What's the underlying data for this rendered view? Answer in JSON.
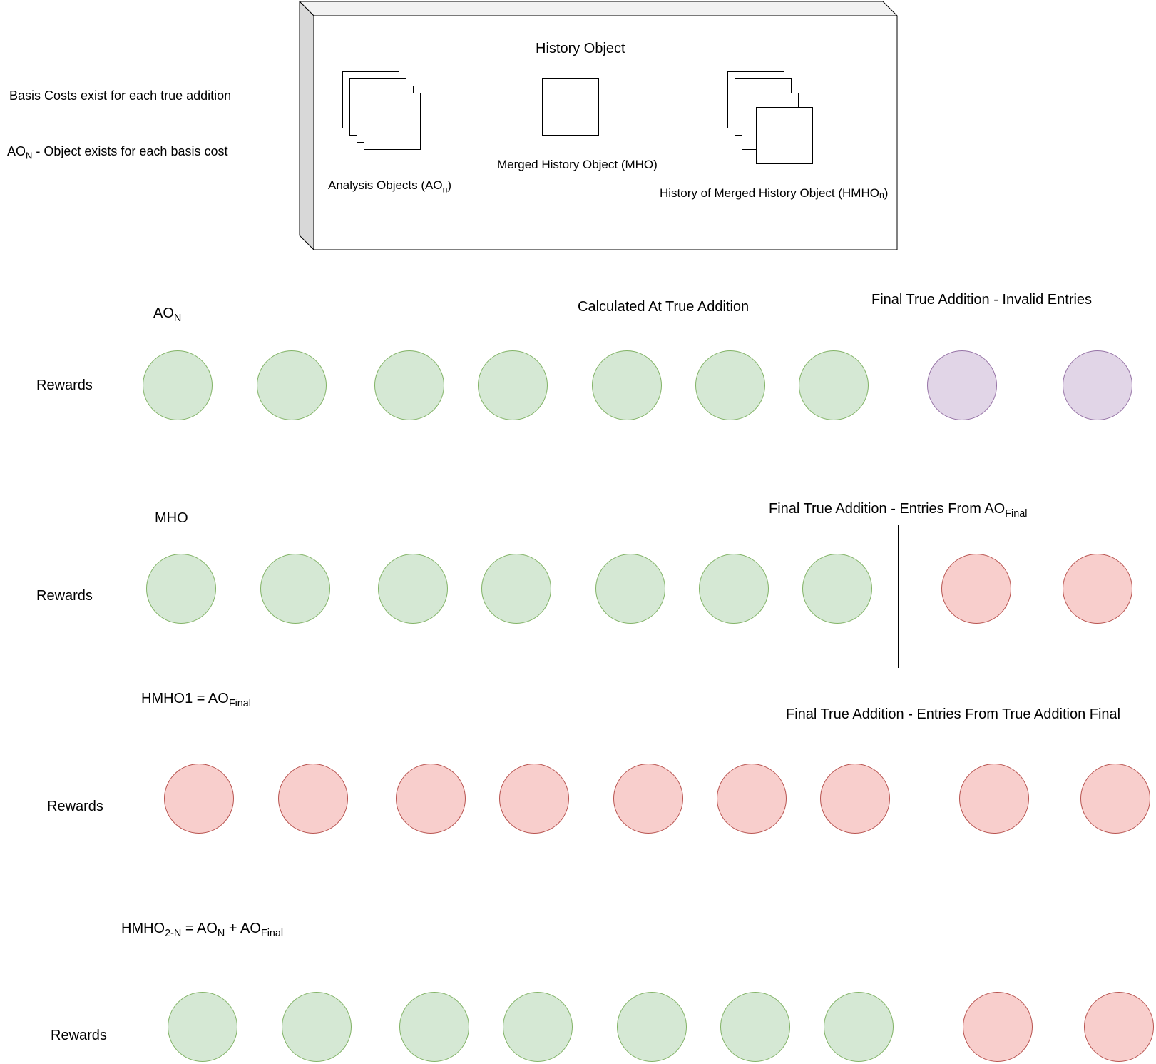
{
  "notes": {
    "basis_costs": "Basis Costs exist for each true addition",
    "ao_prefix": "AO",
    "ao_sub": "N",
    "ao_rest": " - Object exists for each basis cost"
  },
  "history_box": {
    "title": "History Object",
    "analysis_objects_label": "Analysis Objects (AO",
    "analysis_objects_sub": "n",
    "analysis_objects_close": ")",
    "mho_label": "Merged History Object (MHO)",
    "hmho_label": "History of Merged History Object (HMHO",
    "hmho_sub": "n",
    "hmho_close": ")"
  },
  "rows": [
    {
      "title_main": "AO",
      "title_sub": "N",
      "label": "Rewards",
      "annotations": [
        {
          "text": "Calculated At True Addition"
        },
        {
          "text": "Final True Addition - Invalid Entries"
        }
      ],
      "circles": [
        "green",
        "green",
        "green",
        "green",
        "green",
        "green",
        "green",
        "purple",
        "purple"
      ]
    },
    {
      "title_main": "MHO",
      "label": "Rewards",
      "annotations": [
        {
          "text": "Final True Addition - Entries From AO",
          "sub": "Final"
        }
      ],
      "circles": [
        "green",
        "green",
        "green",
        "green",
        "green",
        "green",
        "green",
        "red",
        "red"
      ]
    },
    {
      "title_main": "HMHO1 = AO",
      "title_sub": "Final",
      "label": "Rewards",
      "annotations": [
        {
          "text": "Final True Addition - Entries From True Addition Final"
        }
      ],
      "circles": [
        "red",
        "red",
        "red",
        "red",
        "red",
        "red",
        "red",
        "red",
        "red"
      ]
    },
    {
      "title_main": "HMHO",
      "title_sub": "2-N",
      "title_mid": " = AO",
      "title_sub2": "N",
      "title_mid2": " + AO",
      "title_sub3": "Final",
      "label": "Rewards",
      "circles": [
        "green",
        "green",
        "green",
        "green",
        "green",
        "green",
        "green",
        "red",
        "red"
      ]
    }
  ],
  "colors": {
    "green_fill": "#d5e8d4",
    "green_stroke": "#82b366",
    "purple_fill": "#e1d5e7",
    "purple_stroke": "#9673a6",
    "red_fill": "#f8cecc",
    "red_stroke": "#b85450"
  }
}
